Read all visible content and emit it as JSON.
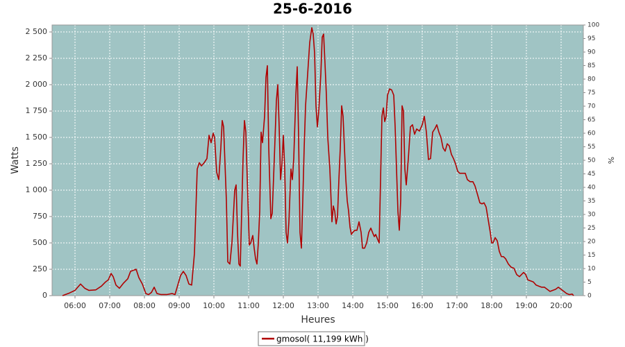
{
  "chart_data": {
    "type": "line",
    "title": "25-6-2016",
    "xlabel": "Heures",
    "ylabel": "Watts",
    "y2label": "%",
    "background": "#a0c4c4",
    "grid": true,
    "legend": "bottom",
    "xlim": [
      5.34,
      20.64
    ],
    "xticks": [
      {
        "value": 6,
        "label": "06:00"
      },
      {
        "value": 7,
        "label": "07:00"
      },
      {
        "value": 8,
        "label": "08:00"
      },
      {
        "value": 9,
        "label": "09:00"
      },
      {
        "value": 10,
        "label": "10:00"
      },
      {
        "value": 11,
        "label": "11:00"
      },
      {
        "value": 12,
        "label": "12:00"
      },
      {
        "value": 13,
        "label": "13:00"
      },
      {
        "value": 14,
        "label": "14:00"
      },
      {
        "value": 15,
        "label": "15:00"
      },
      {
        "value": 16,
        "label": "16:00"
      },
      {
        "value": 17,
        "label": "17:00"
      },
      {
        "value": 18,
        "label": "18:00"
      },
      {
        "value": 19,
        "label": "19:00"
      },
      {
        "value": 20,
        "label": "20:00"
      }
    ],
    "ylim": [
      0,
      2566
    ],
    "yticks": [
      0,
      250,
      500,
      750,
      {
        "value": 1000,
        "label": "1 000"
      },
      {
        "value": 1250,
        "label": "1 250"
      },
      {
        "value": 1500,
        "label": "1 500"
      },
      {
        "value": 1750,
        "label": "1 750"
      },
      {
        "value": 2000,
        "label": "2 000"
      },
      {
        "value": 2250,
        "label": "2 250"
      },
      {
        "value": 2500,
        "label": "2 500"
      }
    ],
    "y2lim": [
      0,
      100
    ],
    "y2ticks": [
      0,
      5,
      10,
      15,
      20,
      25,
      30,
      35,
      40,
      45,
      50,
      55,
      60,
      65,
      70,
      75,
      80,
      85,
      90,
      95,
      100
    ],
    "x": [
      5.64,
      5.84,
      6.0,
      6.16,
      6.28,
      6.4,
      6.6,
      6.76,
      6.88,
      6.96,
      7.04,
      7.1,
      7.18,
      7.28,
      7.4,
      7.52,
      7.6,
      7.68,
      7.76,
      7.84,
      7.94,
      8.04,
      8.12,
      8.2,
      8.28,
      8.36,
      8.48,
      8.64,
      8.8,
      8.88,
      8.96,
      9.04,
      9.12,
      9.2,
      9.28,
      9.36,
      9.44,
      9.52,
      9.58,
      9.64,
      9.72,
      9.8,
      9.86,
      9.92,
      9.98,
      10.02,
      10.08,
      10.14,
      10.2,
      10.24,
      10.28,
      10.36,
      10.4,
      10.46,
      10.52,
      10.6,
      10.64,
      10.68,
      10.72,
      10.76,
      10.84,
      10.88,
      10.92,
      10.98,
      11.02,
      11.06,
      11.12,
      11.16,
      11.2,
      11.24,
      11.28,
      11.32,
      11.36,
      11.4,
      11.46,
      11.5,
      11.54,
      11.58,
      11.64,
      11.68,
      11.74,
      11.8,
      11.84,
      11.88,
      11.92,
      11.96,
      12.0,
      12.04,
      12.08,
      12.12,
      12.16,
      12.22,
      12.26,
      12.3,
      12.36,
      12.4,
      12.44,
      12.48,
      12.52,
      12.56,
      12.6,
      12.64,
      12.68,
      12.72,
      12.76,
      12.82,
      12.86,
      12.9,
      12.94,
      12.98,
      13.02,
      13.08,
      13.12,
      13.16,
      13.2,
      13.24,
      13.28,
      13.34,
      13.4,
      13.44,
      13.48,
      13.52,
      13.56,
      13.6,
      13.64,
      13.68,
      13.72,
      13.76,
      13.8,
      13.84,
      13.88,
      13.92,
      13.96,
      14.0,
      14.06,
      14.12,
      14.18,
      14.24,
      14.28,
      14.34,
      14.4,
      14.46,
      14.52,
      14.58,
      14.62,
      14.66,
      14.72,
      14.76,
      14.8,
      14.84,
      14.88,
      14.92,
      14.96,
      15.0,
      15.06,
      15.12,
      15.18,
      15.22,
      15.26,
      15.3,
      15.34,
      15.38,
      15.42,
      15.46,
      15.5,
      15.54,
      15.6,
      15.66,
      15.72,
      15.78,
      15.84,
      15.92,
      16.0,
      16.06,
      16.12,
      16.18,
      16.24,
      16.3,
      16.36,
      16.42,
      16.48,
      16.54,
      16.6,
      16.66,
      16.72,
      16.78,
      16.84,
      16.9,
      16.96,
      17.02,
      17.08,
      17.16,
      17.24,
      17.3,
      17.38,
      17.46,
      17.52,
      17.6,
      17.66,
      17.72,
      17.78,
      17.84,
      17.9,
      17.96,
      18.0,
      18.04,
      18.1,
      18.16,
      18.22,
      18.28,
      18.34,
      18.4,
      18.48,
      18.56,
      18.64,
      18.72,
      18.8,
      18.86,
      18.92,
      18.98,
      19.04,
      19.12,
      19.2,
      19.28,
      19.36,
      19.44,
      19.52,
      19.6,
      19.68,
      19.76,
      19.84,
      19.92,
      20.0,
      20.08,
      20.16,
      20.24,
      20.32,
      20.36
    ],
    "series": [
      {
        "name": "gmosol( 11,199 kWh )",
        "color": "#b00000",
        "values": [
          0,
          25,
          50,
          110,
          70,
          50,
          55,
          90,
          130,
          150,
          210,
          180,
          100,
          70,
          120,
          160,
          230,
          240,
          250,
          170,
          110,
          20,
          10,
          30,
          80,
          20,
          10,
          10,
          20,
          10,
          100,
          190,
          230,
          190,
          110,
          100,
          400,
          1200,
          1260,
          1230,
          1260,
          1300,
          1520,
          1450,
          1540,
          1500,
          1170,
          1100,
          1400,
          1660,
          1600,
          900,
          320,
          300,
          500,
          1000,
          1050,
          600,
          300,
          280,
          1300,
          1660,
          1550,
          900,
          480,
          500,
          570,
          450,
          350,
          300,
          500,
          800,
          1550,
          1450,
          1700,
          2070,
          2180,
          1400,
          730,
          780,
          1300,
          1850,
          2000,
          1600,
          1100,
          1250,
          1520,
          1200,
          600,
          500,
          700,
          1200,
          1100,
          1300,
          1900,
          2170,
          1500,
          600,
          450,
          900,
          1400,
          1800,
          2000,
          2200,
          2400,
          2540,
          2480,
          2300,
          1800,
          1600,
          1750,
          2100,
          2450,
          2480,
          2200,
          1900,
          1500,
          1200,
          700,
          850,
          800,
          680,
          750,
          1100,
          1400,
          1800,
          1700,
          1400,
          1100,
          900,
          800,
          650,
          580,
          600,
          620,
          620,
          700,
          600,
          450,
          450,
          500,
          600,
          640,
          590,
          560,
          580,
          530,
          500,
          1100,
          1700,
          1780,
          1650,
          1700,
          1900,
          1960,
          1950,
          1900,
          1600,
          1200,
          800,
          620,
          900,
          1800,
          1750,
          1200,
          1050,
          1300,
          1600,
          1620,
          1530,
          1580,
          1560,
          1620,
          1700,
          1550,
          1290,
          1300,
          1550,
          1580,
          1620,
          1550,
          1500,
          1400,
          1370,
          1440,
          1420,
          1340,
          1300,
          1250,
          1180,
          1160,
          1160,
          1160,
          1100,
          1080,
          1080,
          1040,
          950,
          880,
          870,
          880,
          840,
          720,
          600,
          500,
          500,
          550,
          520,
          420,
          370,
          370,
          350,
          300,
          270,
          260,
          200,
          180,
          200,
          220,
          200,
          150,
          140,
          130,
          100,
          90,
          80,
          80,
          60,
          40,
          50,
          60,
          80,
          60,
          40,
          20,
          10,
          15,
          0
        ]
      }
    ]
  }
}
